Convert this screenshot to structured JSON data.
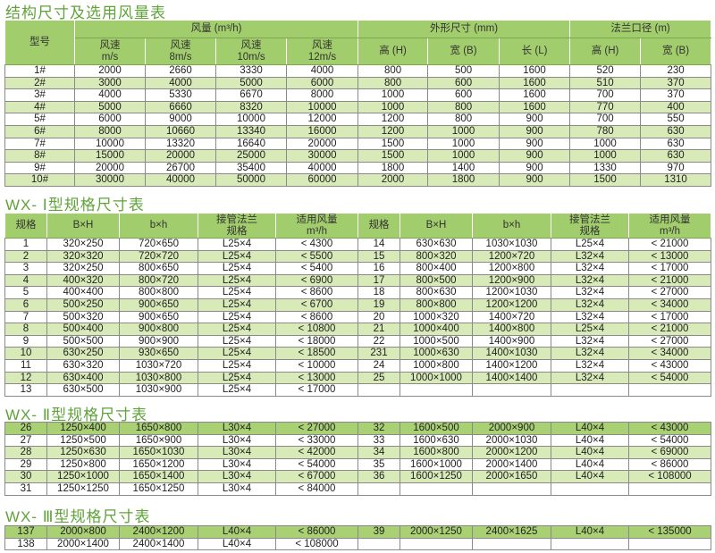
{
  "table1": {
    "title": "结构尺寸及选用风量表",
    "headers": {
      "model": "型号",
      "airflow": "风量 (m³/h)",
      "dims": "外形尺寸 (mm)",
      "flange": "法兰口径 (m)",
      "speeds": [
        "风速\nm/s",
        "风速\n8m/s",
        "风速\n10m/s",
        "风速\n12m/s"
      ],
      "dim_cols": [
        "高 (H)",
        "宽 (B)",
        "长 (L)"
      ],
      "flange_cols": [
        "高 (H)",
        "宽 (B)"
      ]
    },
    "rows": [
      [
        "1#",
        "2000",
        "2660",
        "3330",
        "4000",
        "800",
        "500",
        "1600",
        "520",
        "230"
      ],
      [
        "2#",
        "3000",
        "4000",
        "5000",
        "6000",
        "800",
        "600",
        "1600",
        "510",
        "370"
      ],
      [
        "3#",
        "4000",
        "5330",
        "6670",
        "8000",
        "1000",
        "600",
        "1600",
        "700",
        "370"
      ],
      [
        "4#",
        "5000",
        "6660",
        "8320",
        "10000",
        "1000",
        "800",
        "1600",
        "770",
        "400"
      ],
      [
        "5#",
        "6000",
        "9000",
        "10000",
        "12000",
        "1200",
        "800",
        "900",
        "700",
        "550"
      ],
      [
        "6#",
        "8000",
        "10660",
        "13340",
        "16000",
        "1200",
        "1000",
        "900",
        "780",
        "630"
      ],
      [
        "7#",
        "10000",
        "13320",
        "16640",
        "20000",
        "1500",
        "1000",
        "900",
        "1000",
        "630"
      ],
      [
        "8#",
        "15000",
        "20000",
        "25000",
        "30000",
        "1500",
        "1000",
        "900",
        "1000",
        "630"
      ],
      [
        "9#",
        "20000",
        "26700",
        "35400",
        "40000",
        "1800",
        "1400",
        "900",
        "1330",
        "970"
      ],
      [
        "10#",
        "30000",
        "40000",
        "50000",
        "60000",
        "2000",
        "1800",
        "900",
        "1500",
        "1310"
      ]
    ]
  },
  "table2": {
    "title": "WX- Ⅰ型规格尺寸表",
    "headers": [
      "规格",
      "B×H",
      "b×h",
      "接管法兰\n规格",
      "适用风量\nm³/h"
    ],
    "left": [
      [
        "1",
        "320×250",
        "720×650",
        "L25×4",
        "< 4300"
      ],
      [
        "2",
        "320×320",
        "720×720",
        "L25×4",
        "< 5500"
      ],
      [
        "3",
        "320×250",
        "800×650",
        "L25×4",
        "< 5400"
      ],
      [
        "4",
        "400×320",
        "800×720",
        "L25×4",
        "< 6900"
      ],
      [
        "5",
        "400×400",
        "800×800",
        "L25×4",
        "< 8600"
      ],
      [
        "6",
        "500×250",
        "900×650",
        "L25×4",
        "< 6700"
      ],
      [
        "7",
        "500×320",
        "900×650",
        "L25×4",
        "< 8600"
      ],
      [
        "8",
        "500×400",
        "900×800",
        "L25×4",
        "< 10800"
      ],
      [
        "9",
        "500×500",
        "900×900",
        "L25×4",
        "< 18000"
      ],
      [
        "10",
        "630×250",
        "930×650",
        "L25×4",
        "< 18500"
      ],
      [
        "11",
        "630×320",
        "1030×720",
        "L25×4",
        "< 10000"
      ],
      [
        "12",
        "630×400",
        "1030×800",
        "L25×4",
        "< 13000"
      ],
      [
        "13",
        "630×500",
        "1030×900",
        "L25×4",
        "< 17000"
      ]
    ],
    "right": [
      [
        "14",
        "630×630",
        "1030×1030",
        "L25×4",
        "< 21000"
      ],
      [
        "15",
        "800×320",
        "1200×720",
        "L32×4",
        "< 13000"
      ],
      [
        "16",
        "800×400",
        "1200×800",
        "L32×4",
        "< 17000"
      ],
      [
        "17",
        "800×500",
        "1200×900",
        "L32×4",
        "< 21000"
      ],
      [
        "18",
        "800×630",
        "1200×1030",
        "L32×4",
        "< 27000"
      ],
      [
        "19",
        "800×800",
        "1200×1200",
        "L32×4",
        "< 34000"
      ],
      [
        "20",
        "1000×320",
        "1400×720",
        "L32×4",
        "< 17000"
      ],
      [
        "21",
        "1000×400",
        "1400×800",
        "L25×4",
        "< 21000"
      ],
      [
        "22",
        "1000×500",
        "1400×900",
        "L32×4",
        "< 27000"
      ],
      [
        "231",
        "1000×630",
        "1400×1030",
        "L32×4",
        "< 34000"
      ],
      [
        "24",
        "1000×800",
        "1400×1200",
        "L32×4",
        "< 43000"
      ],
      [
        "25",
        "1000×1000",
        "1400×1400",
        "L32×4",
        "< 54000"
      ],
      [
        "",
        "",
        "",
        "",
        ""
      ]
    ]
  },
  "table3": {
    "title": "WX- Ⅱ型规格尺寸表",
    "left": [
      [
        "26",
        "1250×400",
        "1650×800",
        "L30×4",
        "< 27000"
      ],
      [
        "27",
        "1250×500",
        "1650×900",
        "L30×4",
        "< 33000"
      ],
      [
        "28",
        "1250×630",
        "1650×1030",
        "L30×4",
        "< 42000"
      ],
      [
        "29",
        "1250×800",
        "1650×1200",
        "L30×4",
        "< 54000"
      ],
      [
        "30",
        "1250×1000",
        "1650×1400",
        "L30×4",
        "< 67000"
      ],
      [
        "31",
        "1250×1250",
        "1650×1250",
        "L30×4",
        "< 84000"
      ]
    ],
    "right": [
      [
        "32",
        "1600×500",
        "2000×900",
        "L40×4",
        "< 43000"
      ],
      [
        "33",
        "1600×630",
        "2000×1030",
        "L40×4",
        "< 54000"
      ],
      [
        "34",
        "1600×800",
        "2000×1200",
        "L40×4",
        "< 69000"
      ],
      [
        "35",
        "1600×1000",
        "2000×1400",
        "L40×4",
        "< 86000"
      ],
      [
        "36",
        "1600×1250",
        "2000×1650",
        "L40×4",
        "< 108000"
      ],
      [
        "",
        "",
        "",
        "",
        ""
      ]
    ]
  },
  "table4": {
    "title": "WX- Ⅲ型规格尺寸表",
    "left": [
      [
        "137",
        "2000×800",
        "2400×1200",
        "L40×4",
        "< 86000"
      ],
      [
        "138",
        "2000×1400",
        "2400×1400",
        "L40×4",
        "< 108000"
      ]
    ],
    "right": [
      [
        "39",
        "2000×1250",
        "2400×1625",
        "L40×4",
        "< 135000"
      ],
      [
        "",
        "",
        "",
        "",
        ""
      ]
    ]
  },
  "colors": {
    "title": "#5fa33a",
    "header": "#a2cd6c",
    "stripe": "#d8eab7",
    "dark_stripe": "#a9d174"
  }
}
